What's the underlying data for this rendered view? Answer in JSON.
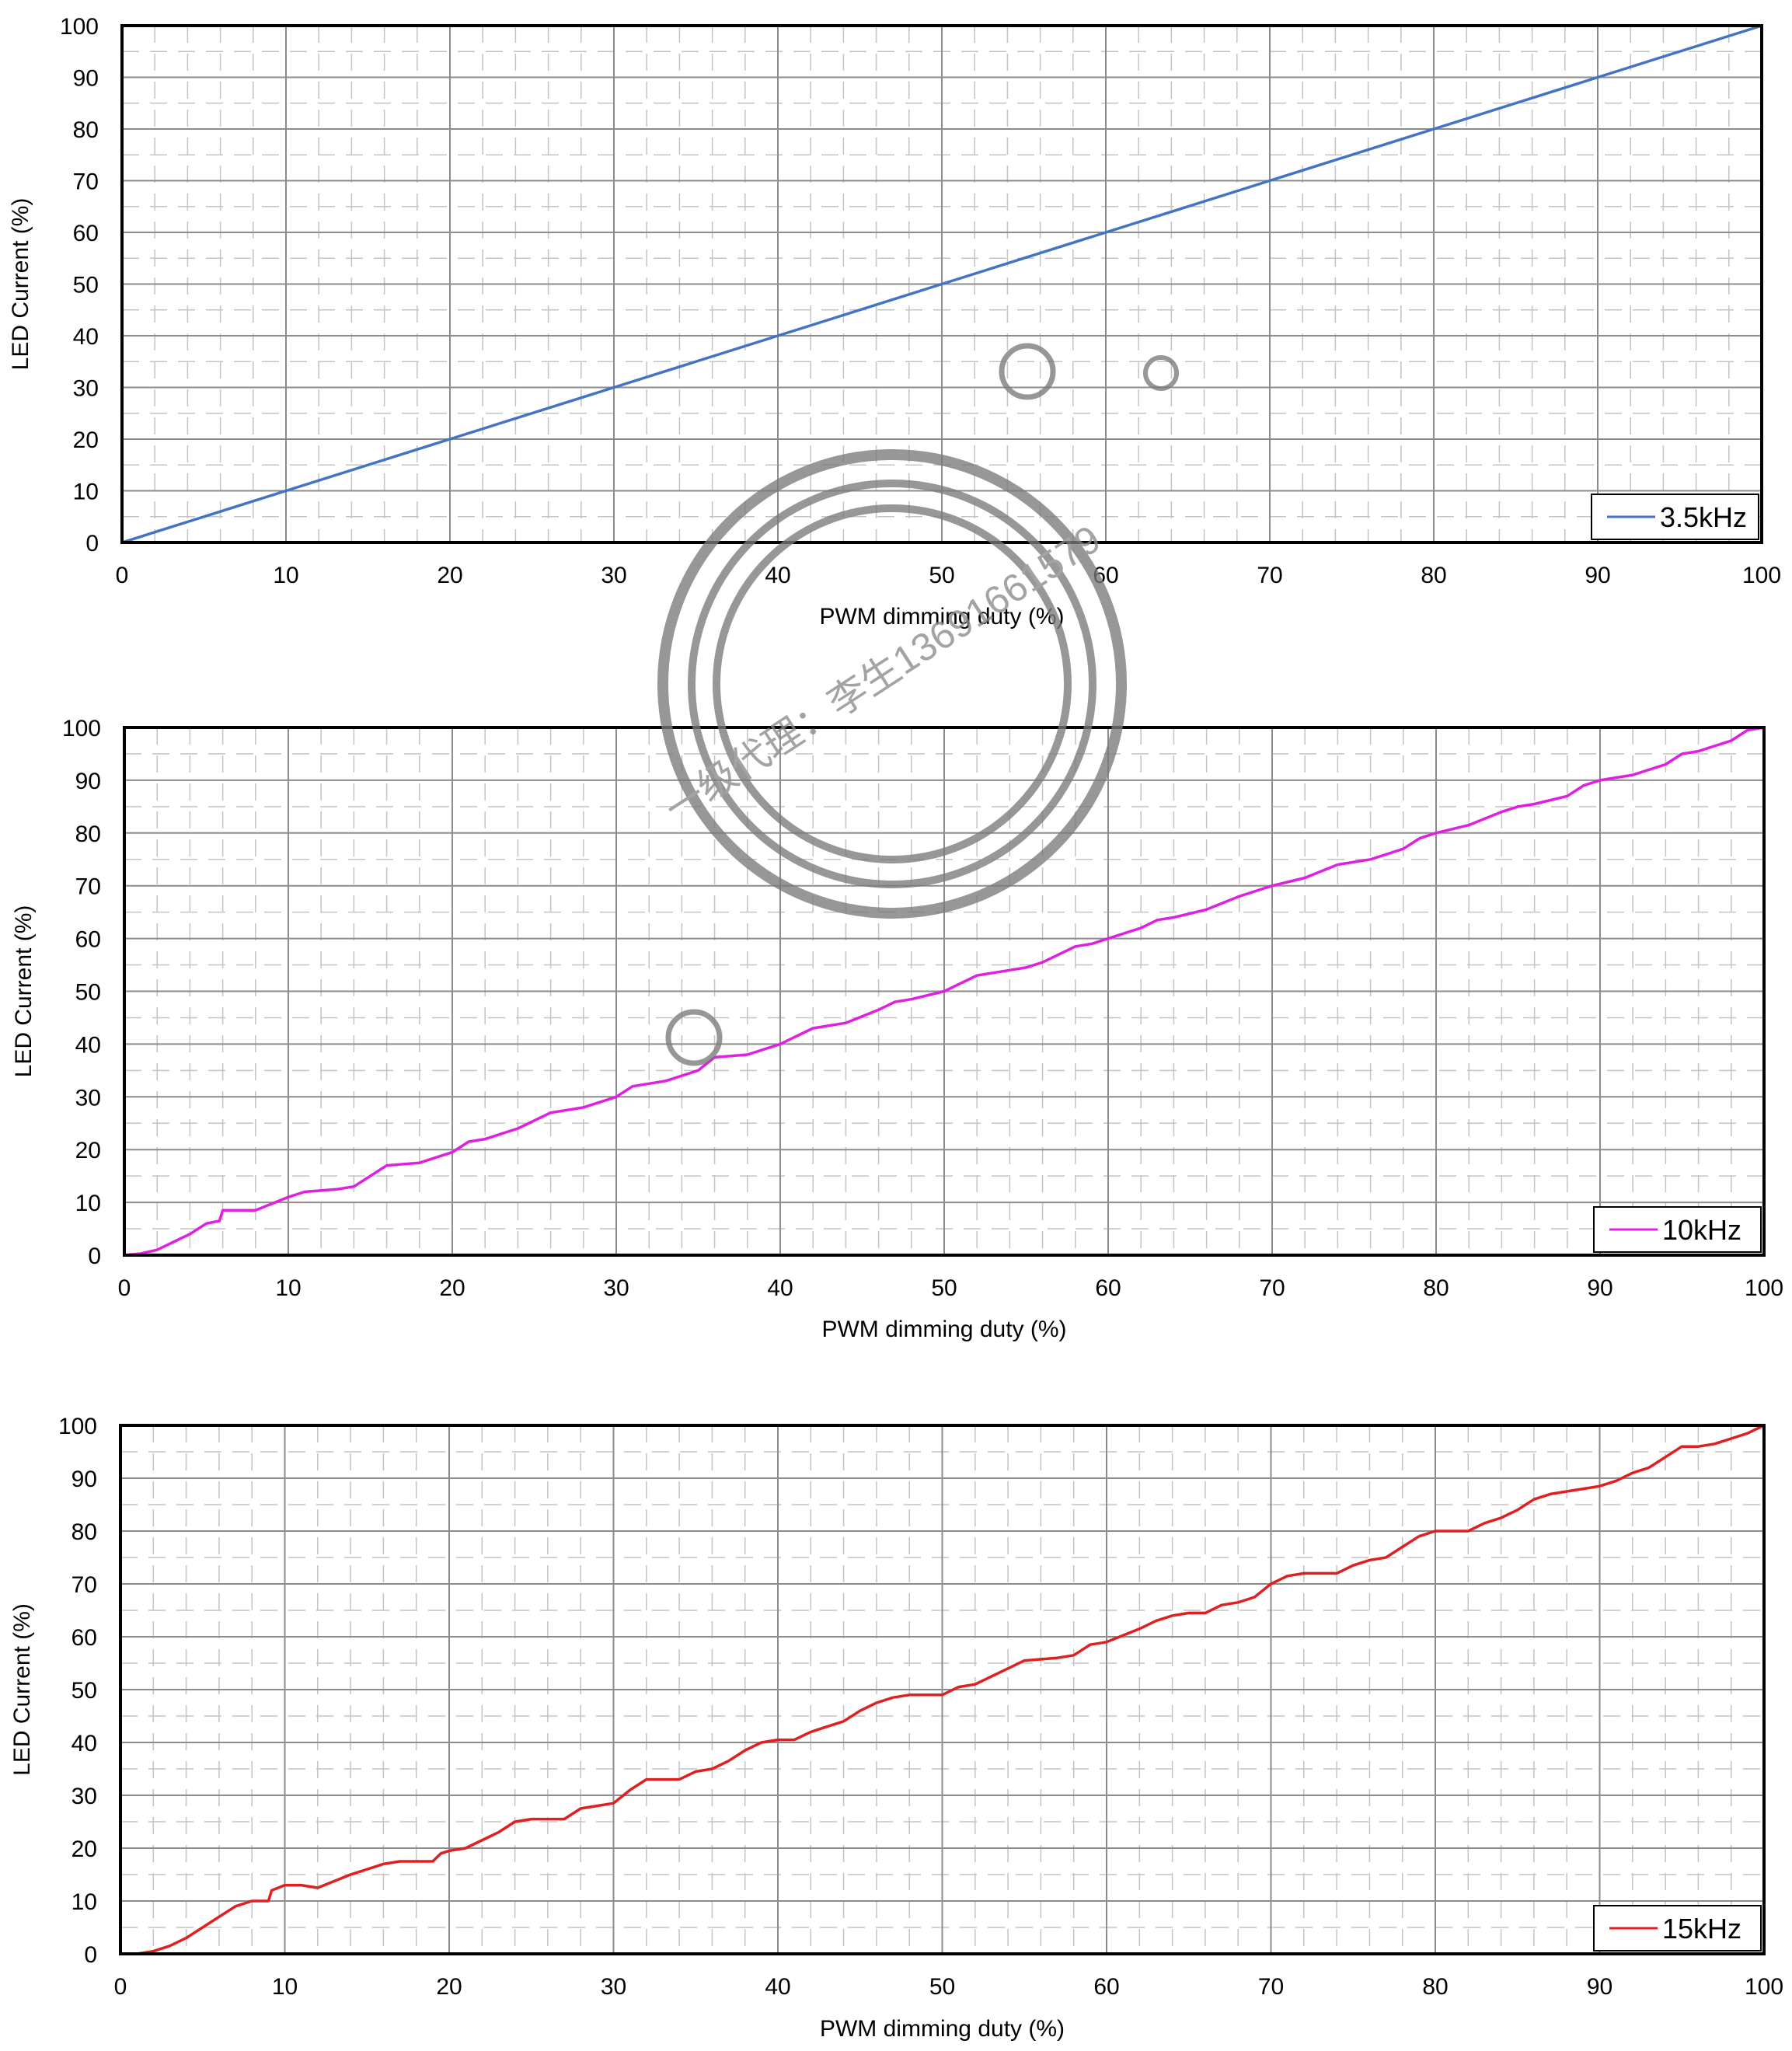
{
  "chart_data": [
    {
      "type": "line",
      "xlabel": "PWM dimming duty (%)",
      "ylabel": "LED Current (%)",
      "xlim": [
        0,
        100
      ],
      "ylim": [
        0,
        100
      ],
      "x_ticks": [
        0,
        10,
        20,
        30,
        40,
        50,
        60,
        70,
        80,
        90,
        100
      ],
      "y_ticks": [
        0,
        10,
        20,
        30,
        40,
        50,
        60,
        70,
        80,
        90,
        100
      ],
      "grid": true,
      "legend_position": "bottom-right",
      "series": [
        {
          "name": "3.5kHz",
          "color": "#4472c4",
          "x": [
            0,
            1,
            2,
            5,
            10,
            20,
            30,
            40,
            50,
            60,
            70,
            80,
            90,
            100
          ],
          "y": [
            0,
            1,
            2,
            5,
            10,
            20,
            30,
            40,
            50,
            60,
            70,
            80,
            90,
            100
          ]
        }
      ]
    },
    {
      "type": "line",
      "xlabel": "PWM dimming duty (%)",
      "ylabel": "LED Current (%)",
      "xlim": [
        0,
        100
      ],
      "ylim": [
        0,
        100
      ],
      "x_ticks": [
        0,
        10,
        20,
        30,
        40,
        50,
        60,
        70,
        80,
        90,
        100
      ],
      "y_ticks": [
        0,
        10,
        20,
        30,
        40,
        50,
        60,
        70,
        80,
        90,
        100
      ],
      "grid": true,
      "legend_position": "bottom-right",
      "series": [
        {
          "name": "10kHz",
          "color": "#e020e0",
          "x": [
            0,
            1,
            2,
            3,
            4,
            5,
            5.8,
            6,
            8,
            10,
            11,
            13,
            14,
            16,
            18,
            20,
            21,
            22,
            24,
            26,
            27,
            28,
            30,
            31,
            32,
            33,
            35,
            36,
            38,
            40,
            42,
            44,
            46,
            47,
            48,
            50,
            52,
            54,
            55,
            56,
            58,
            59,
            60,
            62,
            63,
            64,
            66,
            68,
            69,
            70,
            72,
            74,
            75,
            76,
            78,
            79,
            80,
            82,
            84,
            85,
            86,
            88,
            89,
            90,
            92,
            94,
            95,
            96,
            98,
            99,
            100
          ],
          "y": [
            0,
            0.3,
            1,
            2.5,
            4,
            6,
            6.5,
            8.5,
            8.5,
            11,
            12,
            12.5,
            13,
            17,
            17.5,
            19.5,
            21.5,
            22,
            24,
            27,
            27.5,
            28,
            30,
            32,
            32.5,
            33,
            35,
            37.5,
            38,
            40,
            43,
            44,
            46.5,
            48,
            48.5,
            50,
            53,
            54,
            54.5,
            55.5,
            58.5,
            59,
            60,
            62,
            63.5,
            64,
            65.5,
            68,
            69,
            70,
            71.5,
            74,
            74.5,
            75,
            77,
            79,
            80,
            81.5,
            84,
            85,
            85.5,
            87,
            89,
            90,
            91,
            93,
            95,
            95.5,
            97.5,
            99.5,
            100
          ]
        }
      ]
    },
    {
      "type": "line",
      "xlabel": "PWM dimming duty (%)",
      "ylabel": "LED Current (%)",
      "xlim": [
        0,
        100
      ],
      "ylim": [
        0,
        100
      ],
      "x_ticks": [
        0,
        10,
        20,
        30,
        40,
        50,
        60,
        70,
        80,
        90,
        100
      ],
      "y_ticks": [
        0,
        10,
        20,
        30,
        40,
        50,
        60,
        70,
        80,
        90,
        100
      ],
      "grid": true,
      "legend_position": "bottom-right",
      "series": [
        {
          "name": "15kHz",
          "color": "#e02020",
          "x": [
            0,
            1,
            2,
            3,
            4,
            5,
            6,
            7,
            8,
            9,
            9.2,
            10,
            11,
            12,
            14,
            16,
            17,
            19,
            19.5,
            20,
            21,
            23,
            24,
            25,
            27,
            28,
            29,
            30,
            31,
            32,
            33,
            34,
            35,
            36,
            37,
            38,
            39,
            40,
            41,
            42,
            43,
            44,
            45,
            46,
            47,
            48,
            49,
            50,
            51,
            52,
            54,
            55,
            57,
            58,
            59,
            60,
            62,
            63,
            64,
            65,
            66,
            67,
            68,
            69,
            70,
            71,
            72,
            73,
            74,
            75,
            76,
            77,
            78,
            79,
            80,
            81,
            82,
            83,
            84,
            85,
            86,
            87,
            88,
            89,
            90,
            91,
            92,
            93,
            94,
            95,
            96,
            97,
            98,
            99,
            100
          ],
          "y": [
            0,
            0,
            0.5,
            1.5,
            3,
            5,
            7,
            9,
            10,
            10,
            12,
            13,
            13,
            12.5,
            15,
            17,
            17.5,
            17.5,
            19,
            19.5,
            20,
            23,
            25,
            25.5,
            25.5,
            27.5,
            28,
            28.5,
            31,
            33,
            33,
            33,
            34.5,
            35,
            36.5,
            38.5,
            40,
            40.5,
            40.5,
            42,
            43,
            44,
            46,
            47.5,
            48.5,
            49,
            49,
            49,
            50.5,
            51,
            54,
            55.5,
            56,
            56.5,
            58.5,
            59,
            61.5,
            63,
            64,
            64.5,
            64.5,
            66,
            66.5,
            67.5,
            70,
            71.5,
            72,
            72,
            72,
            73.5,
            74.5,
            75,
            77,
            79,
            80,
            80,
            80,
            81.5,
            82.5,
            84,
            86,
            87,
            87.5,
            88,
            88.5,
            89.5,
            91,
            92,
            94,
            96,
            96,
            96.5,
            97.5,
            98.5,
            100
          ]
        }
      ]
    }
  ],
  "watermark": {
    "text": "一级代理：李生13691661579"
  }
}
